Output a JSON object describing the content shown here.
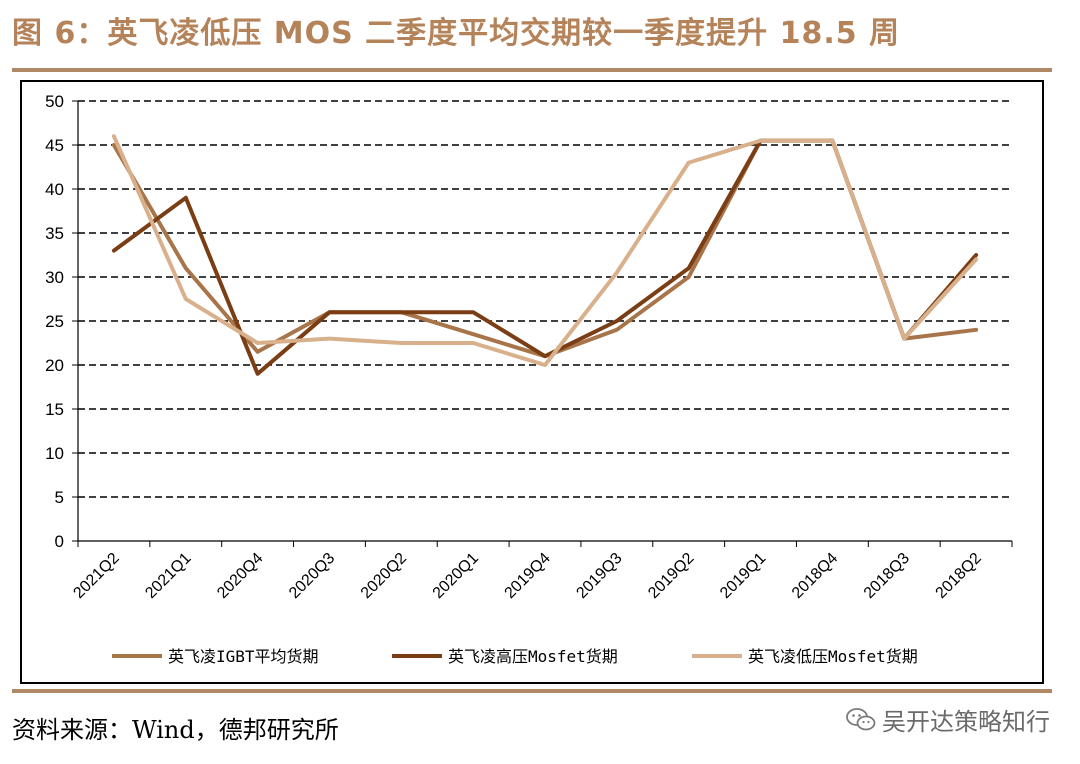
{
  "header": {
    "title": "图 6：英飞凌低压 MOS 二季度平均交期较一季度提升 18.5 周"
  },
  "footer": {
    "source": "资料来源：Wind，德邦研究所",
    "watermark": "吴开达策略知行",
    "watermark_icon": "wechat-icon"
  },
  "colors": {
    "accent_rule": "#b08865",
    "title": "#b5835a",
    "series_igbt": "#a8754a",
    "series_high": "#7a3d14",
    "series_low": "#d9b08c"
  },
  "chart_data": {
    "type": "line",
    "categories": [
      "2021Q2",
      "2021Q1",
      "2020Q4",
      "2020Q3",
      "2020Q2",
      "2020Q1",
      "2019Q4",
      "2019Q3",
      "2019Q2",
      "2019Q1",
      "2018Q4",
      "2018Q3",
      "2018Q2"
    ],
    "ylim": [
      0,
      50
    ],
    "yticks": [
      0,
      5,
      10,
      15,
      20,
      25,
      30,
      35,
      40,
      45,
      50
    ],
    "grid": true,
    "legend_position": "bottom",
    "series": [
      {
        "name": "英飞凌IGBT平均货期",
        "color": "#a8754a",
        "values": [
          45,
          31,
          21.5,
          26,
          26,
          23.5,
          21,
          24,
          30,
          45.5,
          45.5,
          23,
          24
        ]
      },
      {
        "name": "英飞凌高压Mosfet货期",
        "color": "#7a3d14",
        "values": [
          33,
          39,
          19,
          26,
          26,
          26,
          21,
          25,
          31,
          45.5,
          45.5,
          23,
          32.5
        ]
      },
      {
        "name": "英飞凌低压Mosfet货期",
        "color": "#d9b08c",
        "values": [
          46,
          27.5,
          22.5,
          23,
          22.5,
          22.5,
          20,
          30.5,
          43,
          45.5,
          45.5,
          23,
          32
        ]
      }
    ]
  }
}
